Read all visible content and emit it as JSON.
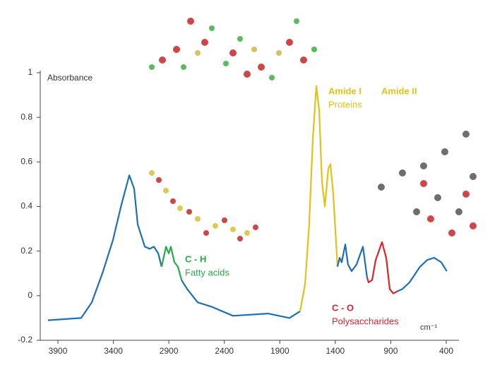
{
  "chart_data": {
    "type": "line",
    "y_label": "Absorbance",
    "x_label": "cm⁻¹",
    "annotations": {
      "ch": "C - H",
      "fatty": "Fatty acids",
      "amide1": "Amide I",
      "amide2": "Amide II",
      "proteins": "Proteins",
      "co": "C - O",
      "poly": "Polysaccharides"
    },
    "xlim": [
      4100,
      300
    ],
    "ylim": [
      -0.2,
      1
    ],
    "xticks": [
      3900,
      3400,
      2900,
      2400,
      1900,
      1400,
      900,
      400
    ],
    "yticks": [
      -0.2,
      0,
      0.2,
      0.4,
      0.6,
      0.8,
      1
    ],
    "series": [
      {
        "color": "#1f6fb4",
        "x": [
          3989,
          3690,
          3595,
          3499,
          3404,
          3327,
          3257,
          3213,
          3181,
          3117,
          3073,
          3035,
          2996,
          2965
        ],
        "values": [
          -0.11,
          -0.1,
          -0.03,
          0.1,
          0.25,
          0.41,
          0.54,
          0.48,
          0.32,
          0.22,
          0.21,
          0.22,
          0.19,
          0.13
        ]
      },
      {
        "color": "#2aa84a",
        "x": [
          2965,
          2926,
          2901,
          2882,
          2850,
          2818,
          2786
        ],
        "values": [
          0.13,
          0.22,
          0.19,
          0.22,
          0.15,
          0.13,
          0.07
        ]
      },
      {
        "color": "#1f6fb4",
        "x": [
          2786,
          2735,
          2640,
          2513,
          2322,
          2004,
          1813,
          1717
        ],
        "values": [
          0.07,
          0.03,
          -0.03,
          -0.05,
          -0.09,
          -0.08,
          -0.1,
          -0.07
        ]
      },
      {
        "color": "#e0c31a",
        "x": [
          1717,
          1673,
          1635,
          1603,
          1571,
          1545,
          1520,
          1494,
          1463,
          1444,
          1419,
          1393,
          1380
        ],
        "values": [
          -0.07,
          0.05,
          0.32,
          0.7,
          0.94,
          0.83,
          0.51,
          0.4,
          0.57,
          0.59,
          0.46,
          0.24,
          0.13
        ]
      },
      {
        "color": "#1f6fb4",
        "x": [
          1380,
          1361,
          1342,
          1310,
          1285,
          1253,
          1208,
          1151,
          1113
        ],
        "values": [
          0.13,
          0.17,
          0.15,
          0.23,
          0.14,
          0.11,
          0.14,
          0.22,
          0.08
        ]
      },
      {
        "color": "#e0222a",
        "x": [
          1113,
          1100,
          1068,
          1036,
          979,
          941,
          909,
          877,
          839
        ],
        "values": [
          0.08,
          0.06,
          0.07,
          0.16,
          0.24,
          0.17,
          0.03,
          0.01,
          0.02
        ]
      },
      {
        "color": "#1f6fb4",
        "x": [
          839,
          795,
          731,
          636,
          572,
          509,
          445,
          395
        ],
        "values": [
          0.02,
          0.03,
          0.06,
          0.13,
          0.16,
          0.17,
          0.15,
          0.11
        ]
      }
    ]
  }
}
